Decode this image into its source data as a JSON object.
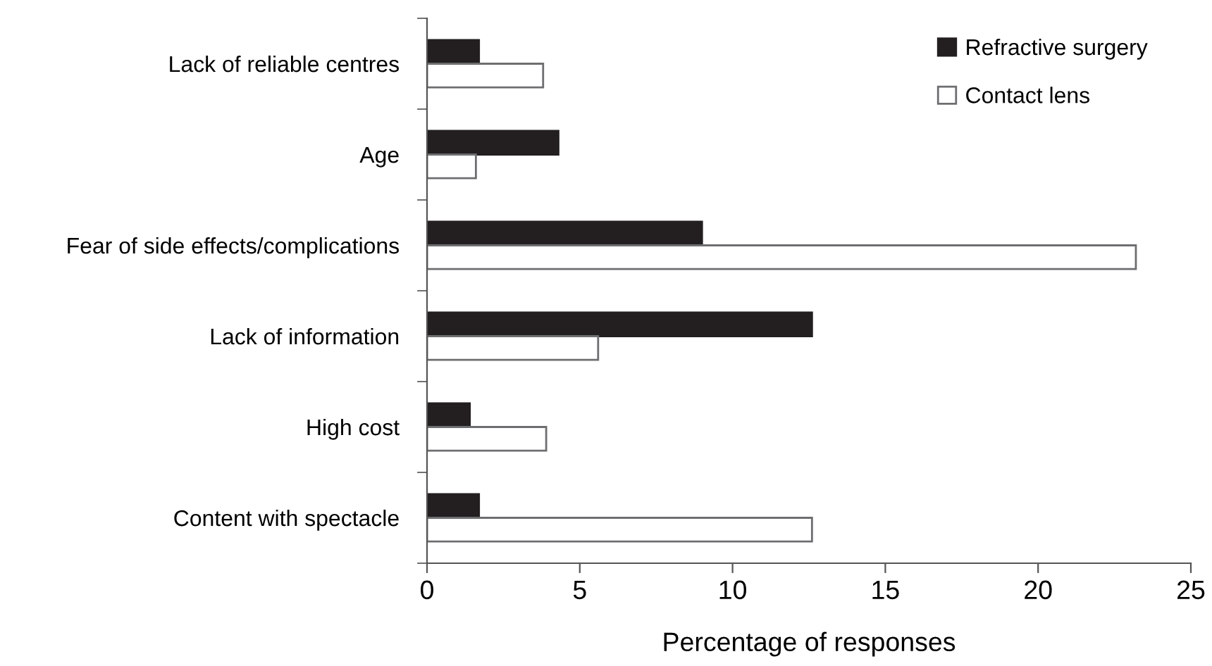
{
  "chart_data": {
    "type": "bar",
    "orientation": "horizontal",
    "xlabel": "Percentage of responses",
    "categories": [
      "Lack of reliable centres",
      "Age",
      "Fear of side effects/complications",
      "Lack of information",
      "High cost",
      "Content with spectacle"
    ],
    "series": [
      {
        "name": "Refractive surgery",
        "color": "#231f20",
        "values": [
          1.7,
          4.3,
          9.0,
          12.6,
          1.4,
          1.7
        ]
      },
      {
        "name": "Contact lens",
        "color": "#ffffff",
        "values": [
          3.8,
          1.6,
          23.2,
          5.6,
          3.9,
          12.6
        ]
      }
    ],
    "xlim": [
      0,
      25
    ],
    "xticks": [
      0,
      5,
      10,
      15,
      20,
      25
    ],
    "legend": "top right",
    "grid": false
  }
}
